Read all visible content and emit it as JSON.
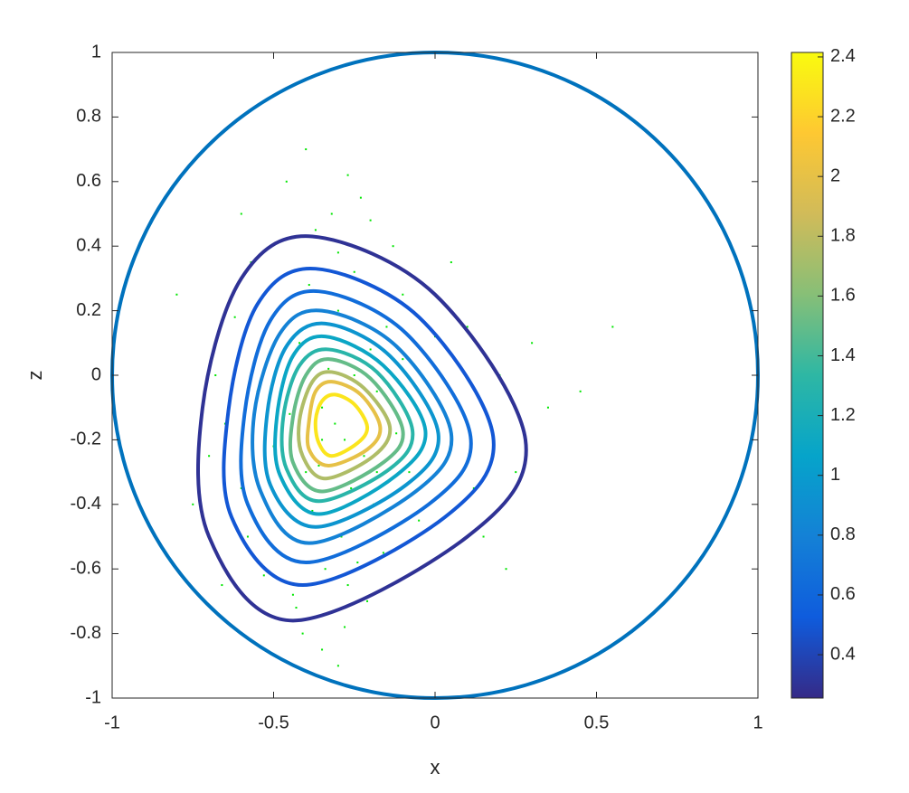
{
  "chart_data": {
    "type": "contour",
    "xlabel": "x",
    "ylabel": "z",
    "xlim": [
      -1,
      1
    ],
    "ylim": [
      -1,
      1
    ],
    "xticks": [
      -1,
      -0.5,
      0,
      0.5,
      1
    ],
    "yticks": [
      -1,
      -0.8,
      -0.6,
      -0.4,
      -0.2,
      0,
      0.2,
      0.4,
      0.6,
      0.8,
      1
    ],
    "circle": {
      "x": 0,
      "y": 0,
      "r": 1,
      "color": "#0072bd"
    },
    "scatter": {
      "color": "#00e600",
      "x": [
        -0.31,
        -0.28,
        -0.35,
        -0.22,
        -0.4,
        -0.18,
        -0.45,
        -0.26,
        -0.33,
        -0.12,
        -0.5,
        -0.38,
        -0.2,
        -0.29,
        -0.55,
        -0.08,
        -0.42,
        -0.24,
        -0.36,
        -0.15,
        -0.6,
        -0.3,
        -0.02,
        -0.47,
        -0.27,
        -0.19,
        -0.39,
        0.05,
        -0.52,
        -0.34,
        -0.1,
        -0.65,
        -0.25,
        0.12,
        -0.44,
        -0.3,
        -0.58,
        -0.16,
        0.0,
        -0.37,
        -0.7,
        -0.21,
        0.2,
        -0.48,
        -0.28,
        -0.05,
        -0.62,
        -0.32,
        0.25,
        -0.41,
        -0.13,
        -0.53,
        -0.23,
        0.1,
        -0.35,
        -0.75,
        -0.18,
        0.35,
        -0.46,
        -0.27,
        -0.08,
        -0.57,
        0.15,
        -0.4,
        -0.66,
        -0.3,
        0.3,
        -0.5,
        -0.2,
        0.45,
        -0.8,
        -0.1,
        0.05,
        -0.43,
        -0.6,
        0.55,
        -0.35,
        -0.25,
        0.22,
        -0.68
      ],
      "y": [
        -0.15,
        -0.2,
        -0.1,
        -0.25,
        -0.3,
        -0.05,
        -0.12,
        -0.35,
        0.02,
        -0.18,
        -0.22,
        -0.42,
        0.08,
        -0.5,
        -0.05,
        -0.3,
        0.1,
        -0.58,
        -0.28,
        0.15,
        -0.35,
        0.2,
        -0.1,
        -0.48,
        -0.65,
        -0.4,
        0.28,
        -0.2,
        0.05,
        -0.6,
        0.25,
        -0.15,
        0.32,
        -0.35,
        -0.68,
        0.38,
        -0.5,
        -0.55,
        0.12,
        0.45,
        -0.25,
        -0.7,
        0.0,
        0.3,
        -0.78,
        -0.45,
        0.18,
        0.5,
        -0.3,
        -0.8,
        0.4,
        -0.62,
        0.55,
        0.15,
        -0.85,
        -0.4,
        -0.3,
        -0.1,
        0.6,
        0.62,
        -0.62,
        0.35,
        -0.5,
        0.7,
        -0.65,
        -0.9,
        0.1,
        -0.75,
        0.48,
        -0.05,
        0.25,
        0.05,
        0.35,
        -0.72,
        0.5,
        0.15,
        -0.2,
        0.0,
        -0.6,
        0.0
      ]
    },
    "contours": [
      {
        "level": 0.3,
        "x": [
          -0.38,
          0.0,
          0.28,
          0.1,
          -0.44,
          -0.7,
          -0.72,
          -0.6
        ],
        "y": [
          0.43,
          0.25,
          -0.2,
          -0.5,
          -0.76,
          -0.5,
          -0.1,
          0.3
        ]
      },
      {
        "level": 0.5,
        "x": [
          -0.37,
          -0.05,
          0.18,
          0.03,
          -0.41,
          -0.63,
          -0.64,
          -0.55
        ],
        "y": [
          0.33,
          0.18,
          -0.19,
          -0.44,
          -0.65,
          -0.44,
          -0.11,
          0.22
        ]
      },
      {
        "level": 0.65,
        "x": [
          -0.36,
          -0.09,
          0.11,
          -0.02,
          -0.4,
          -0.58,
          -0.59,
          -0.51
        ],
        "y": [
          0.26,
          0.13,
          -0.19,
          -0.4,
          -0.58,
          -0.4,
          -0.12,
          0.17
        ]
      },
      {
        "level": 0.8,
        "x": [
          -0.35,
          -0.12,
          0.05,
          -0.06,
          -0.39,
          -0.54,
          -0.56,
          -0.48
        ],
        "y": [
          0.2,
          0.09,
          -0.18,
          -0.36,
          -0.52,
          -0.36,
          -0.12,
          0.13
        ]
      },
      {
        "level": 0.95,
        "x": [
          -0.34,
          -0.14,
          0.01,
          -0.09,
          -0.37,
          -0.51,
          -0.52,
          -0.46
        ],
        "y": [
          0.16,
          0.06,
          -0.18,
          -0.34,
          -0.47,
          -0.34,
          -0.12,
          0.09
        ]
      },
      {
        "level": 1.1,
        "x": [
          -0.34,
          -0.16,
          -0.03,
          -0.12,
          -0.36,
          -0.48,
          -0.49,
          -0.44
        ],
        "y": [
          0.12,
          0.03,
          -0.17,
          -0.31,
          -0.43,
          -0.31,
          -0.13,
          0.06
        ]
      },
      {
        "level": 1.3,
        "x": [
          -0.33,
          -0.18,
          -0.07,
          -0.14,
          -0.36,
          -0.46,
          -0.47,
          -0.42
        ],
        "y": [
          0.08,
          0.01,
          -0.17,
          -0.29,
          -0.39,
          -0.29,
          -0.13,
          0.03
        ]
      },
      {
        "level": 1.5,
        "x": [
          -0.33,
          -0.2,
          -0.1,
          -0.16,
          -0.35,
          -0.44,
          -0.44,
          -0.4
        ],
        "y": [
          0.05,
          -0.01,
          -0.17,
          -0.27,
          -0.36,
          -0.27,
          -0.13,
          0.0
        ]
      },
      {
        "level": 1.75,
        "x": [
          -0.32,
          -0.22,
          -0.14,
          -0.19,
          -0.34,
          -0.41,
          -0.42,
          -0.38
        ],
        "y": [
          0.01,
          -0.04,
          -0.16,
          -0.25,
          -0.32,
          -0.25,
          -0.14,
          -0.02
        ]
      },
      {
        "level": 2.0,
        "x": [
          -0.32,
          -0.23,
          -0.17,
          -0.21,
          -0.33,
          -0.39,
          -0.39,
          -0.37
        ],
        "y": [
          -0.02,
          -0.06,
          -0.16,
          -0.23,
          -0.28,
          -0.23,
          -0.14,
          -0.05
        ]
      },
      {
        "level": 2.3,
        "x": [
          -0.31,
          -0.25,
          -0.21,
          -0.24,
          -0.32,
          -0.36,
          -0.37,
          -0.35
        ],
        "y": [
          -0.06,
          -0.09,
          -0.16,
          -0.21,
          -0.25,
          -0.21,
          -0.14,
          -0.08
        ]
      }
    ],
    "colorbar": {
      "lim": [
        0.255,
        2.415
      ],
      "ticks": [
        0.4,
        0.6,
        0.8,
        1,
        1.2,
        1.4,
        1.6,
        1.8,
        2,
        2.2,
        2.4
      ],
      "colormap": [
        "#352a87",
        "#0f5cdd",
        "#1481d6",
        "#06a4ca",
        "#2eb7a4",
        "#87bf77",
        "#d1bb59",
        "#fec832",
        "#f9fb0e"
      ]
    }
  }
}
